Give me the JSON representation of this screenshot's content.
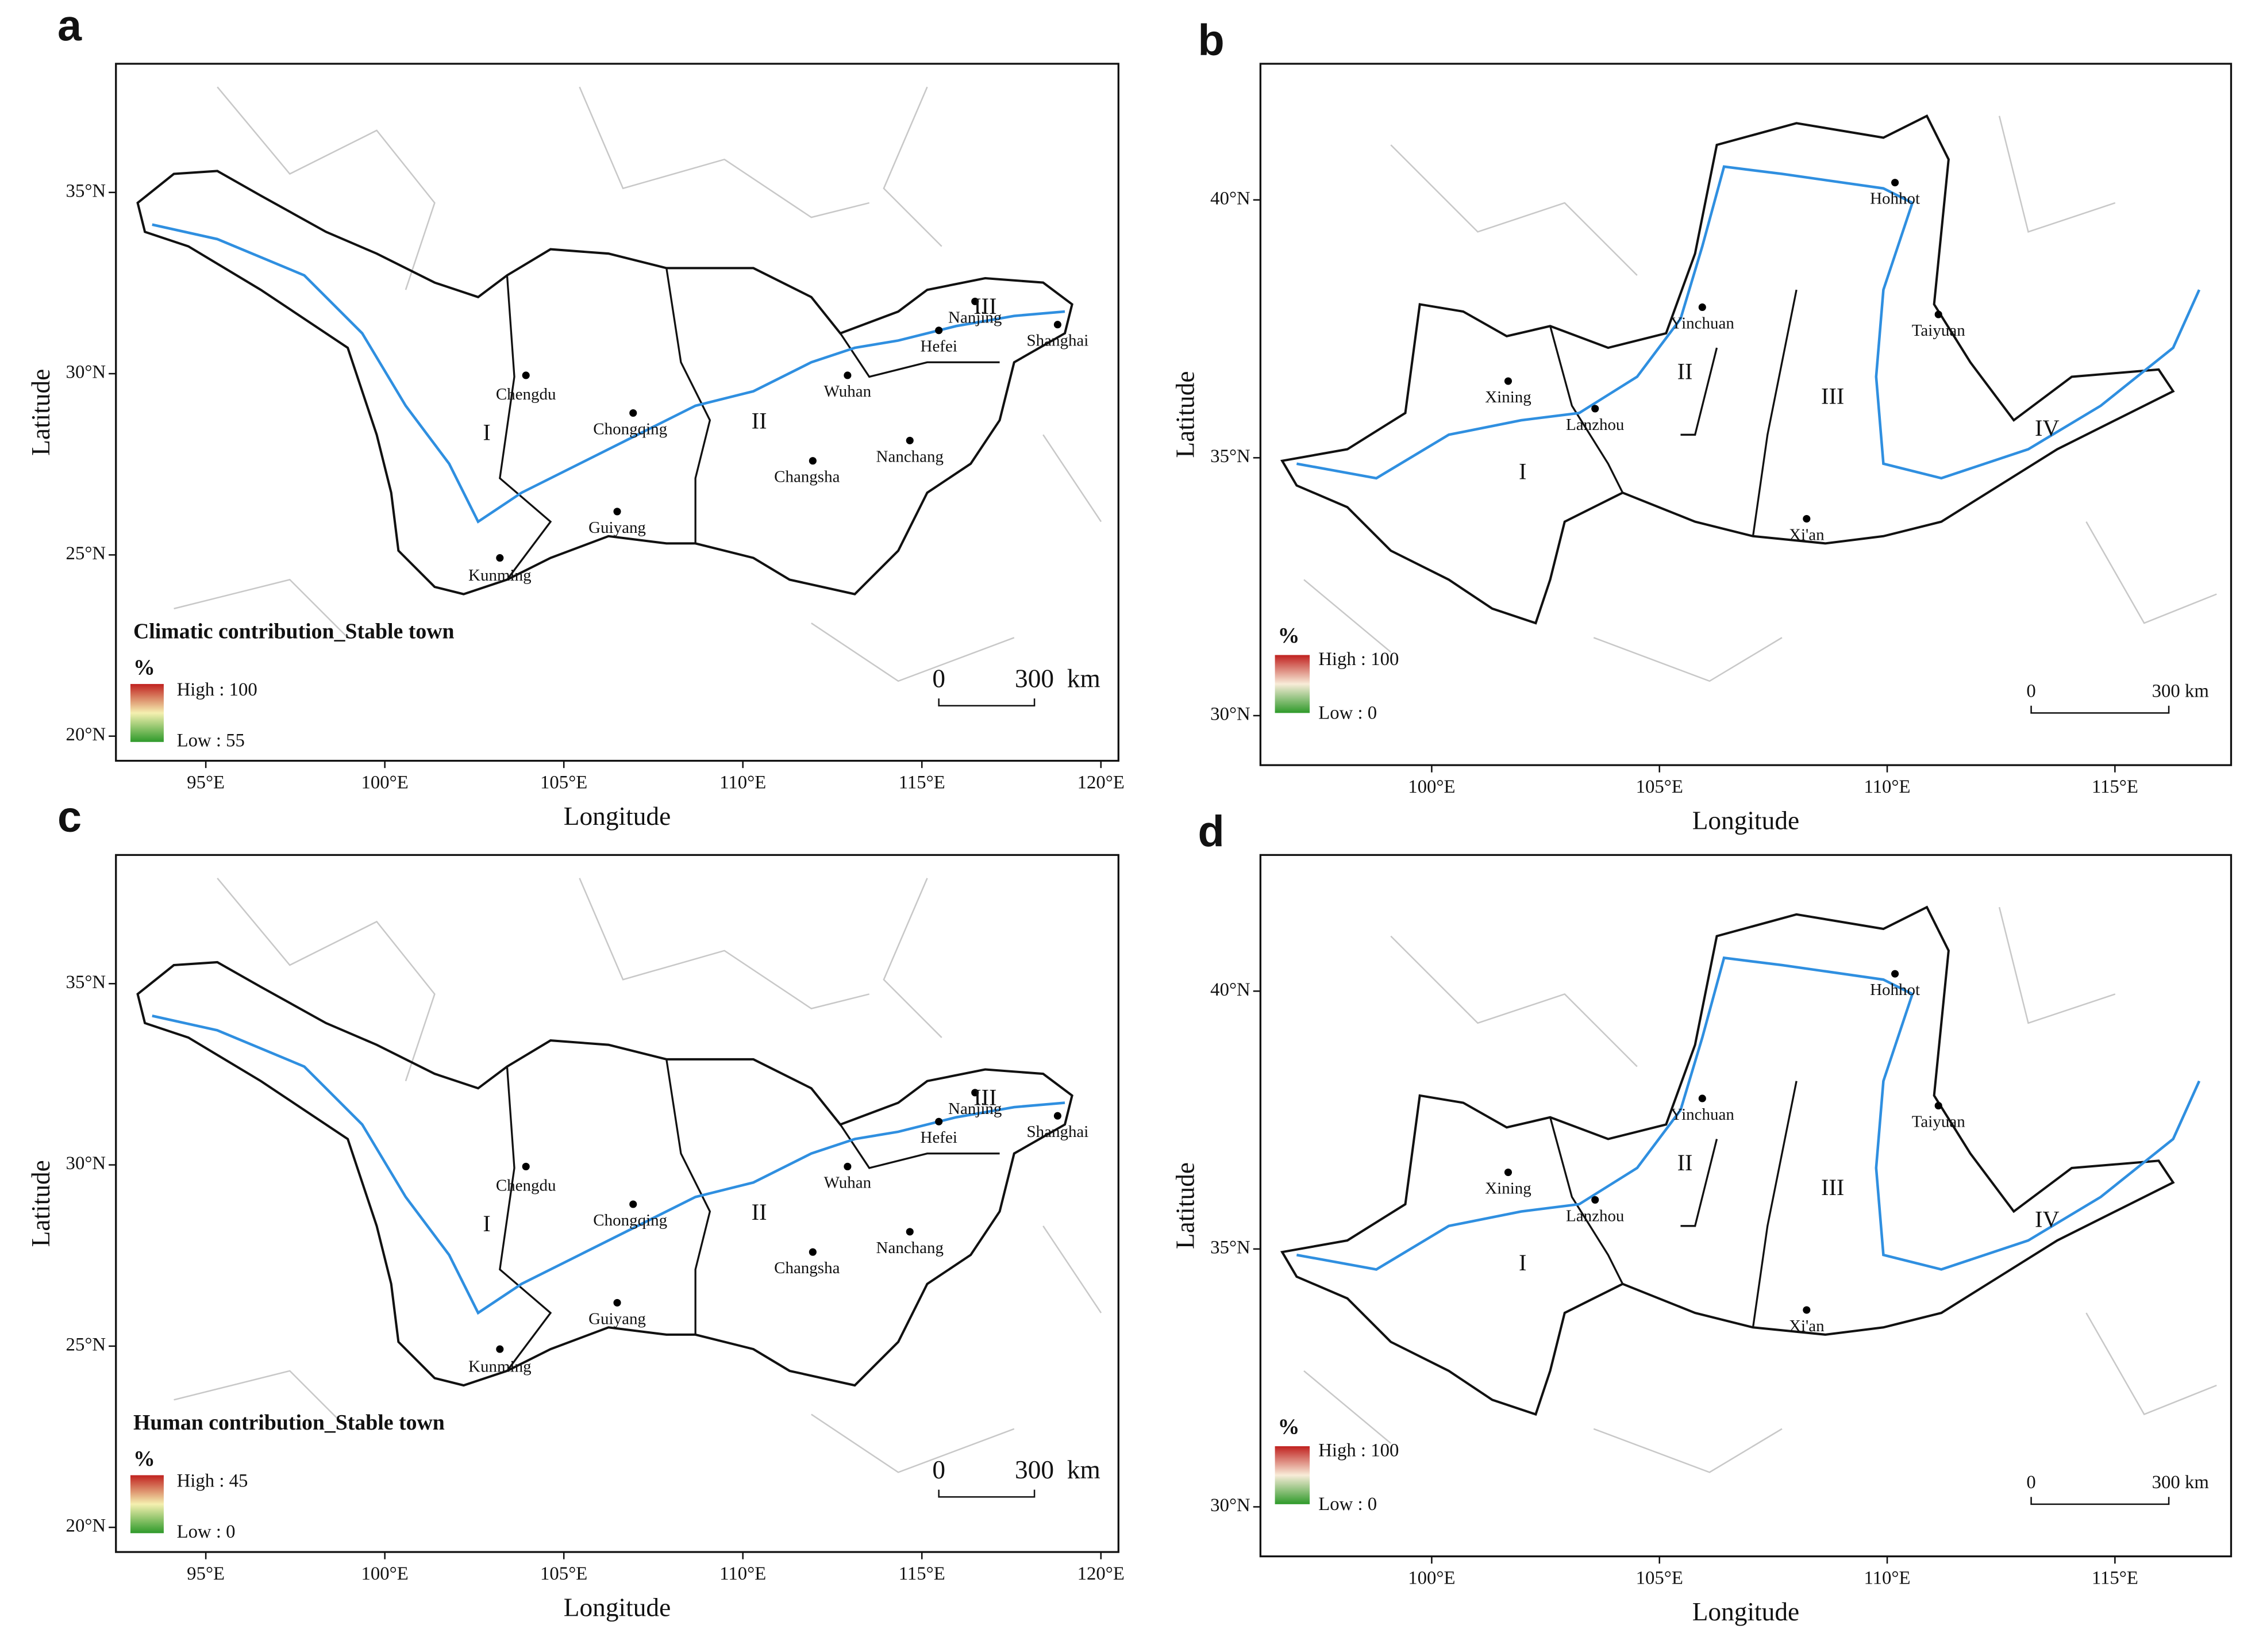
{
  "panels": [
    {
      "label": "a",
      "title": "Climatic contribution_Stable town",
      "legend_unit": "%",
      "legend_high": "High : 100",
      "legend_low": "Low : 55",
      "x_axis_title": "Longitude",
      "y_axis_title": "Latitude",
      "xlim": [
        92.49,
        120.49
      ],
      "ylim": [
        19.32,
        38.55
      ],
      "xticks": [
        {
          "value": 95,
          "label": "95°E"
        },
        {
          "value": 100,
          "label": "100°E"
        },
        {
          "value": 105,
          "label": "105°E"
        },
        {
          "value": 110,
          "label": "110°E"
        },
        {
          "value": 115,
          "label": "115°E"
        },
        {
          "value": 120,
          "label": "120°E"
        }
      ],
      "yticks": [
        {
          "value": 20,
          "label": "20°N"
        },
        {
          "value": 25,
          "label": "25°N"
        },
        {
          "value": 30,
          "label": "30°N"
        },
        {
          "value": 35,
          "label": "35°N"
        }
      ],
      "cities": [
        "Chengdu",
        "Chongqing",
        "Guiyang",
        "Kunming",
        "Wuhan",
        "Changsha",
        "Nanchang",
        "Hefei",
        "Nanjing",
        "Shanghai"
      ],
      "regions": [
        "I",
        "II",
        "III"
      ],
      "scale_labels": [
        "0",
        "300",
        "km"
      ]
    },
    {
      "label": "b",
      "legend_unit": "%",
      "legend_high": "High : 100",
      "legend_low": "Low : 0",
      "x_axis_title": "Longitude",
      "y_axis_title": "Latitude",
      "xlim": [
        96.24,
        117.55
      ],
      "ylim": [
        29.04,
        42.64
      ],
      "xticks": [
        {
          "value": 100,
          "label": "100°E"
        },
        {
          "value": 105,
          "label": "105°E"
        },
        {
          "value": 110,
          "label": "110°E"
        },
        {
          "value": 115,
          "label": "115°E"
        }
      ],
      "yticks": [
        {
          "value": 30,
          "label": "30°N"
        },
        {
          "value": 35,
          "label": "35°N"
        },
        {
          "value": 40,
          "label": "40°N"
        }
      ],
      "cities": [
        "Xining",
        "Lanzhou",
        "Yinchuan",
        "Hohhot",
        "Taiyuan",
        "Xi'an"
      ],
      "regions": [
        "I",
        "II",
        "III",
        "IV"
      ],
      "scale_labels": [
        "0",
        "300 km"
      ]
    },
    {
      "label": "c",
      "title": "Human contribution_Stable town",
      "legend_unit": "%",
      "legend_high": "High : 45",
      "legend_low": "Low : 0",
      "x_axis_title": "Longitude",
      "y_axis_title": "Latitude",
      "xlim": [
        92.49,
        120.49
      ],
      "ylim": [
        19.32,
        38.55
      ],
      "xticks": [
        {
          "value": 95,
          "label": "95°E"
        },
        {
          "value": 100,
          "label": "100°E"
        },
        {
          "value": 105,
          "label": "105°E"
        },
        {
          "value": 110,
          "label": "110°E"
        },
        {
          "value": 115,
          "label": "115°E"
        },
        {
          "value": 120,
          "label": "120°E"
        }
      ],
      "yticks": [
        {
          "value": 20,
          "label": "20°N"
        },
        {
          "value": 25,
          "label": "25°N"
        },
        {
          "value": 30,
          "label": "30°N"
        },
        {
          "value": 35,
          "label": "35°N"
        }
      ],
      "cities": [
        "Chengdu",
        "Chongqing",
        "Guiyang",
        "Kunming",
        "Wuhan",
        "Changsha",
        "Nanchang",
        "Hefei",
        "Nanjing",
        "Shanghai"
      ],
      "regions": [
        "I",
        "II",
        "III"
      ],
      "scale_labels": [
        "0",
        "300",
        "km"
      ]
    },
    {
      "label": "d",
      "legend_unit": "%",
      "legend_high": "High : 100",
      "legend_low": "Low : 0",
      "x_axis_title": "Longitude",
      "y_axis_title": "Latitude",
      "xlim": [
        96.24,
        117.55
      ],
      "ylim": [
        29.04,
        42.64
      ],
      "xticks": [
        {
          "value": 100,
          "label": "100°E"
        },
        {
          "value": 105,
          "label": "105°E"
        },
        {
          "value": 110,
          "label": "110°E"
        },
        {
          "value": 115,
          "label": "115°E"
        }
      ],
      "yticks": [
        {
          "value": 30,
          "label": "30°N"
        },
        {
          "value": 35,
          "label": "35°N"
        },
        {
          "value": 40,
          "label": "40°N"
        }
      ],
      "cities": [
        "Xining",
        "Lanzhou",
        "Yinchuan",
        "Hohhot",
        "Taiyuan",
        "Xi'an"
      ],
      "regions": [
        "I",
        "II",
        "III",
        "IV"
      ],
      "scale_labels": [
        "0",
        "300 km"
      ]
    }
  ]
}
